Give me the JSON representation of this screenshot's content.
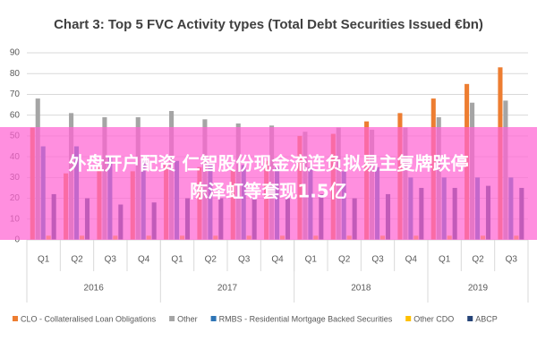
{
  "chart_data": {
    "type": "bar",
    "title": "Chart 3: Top 5 FVC Activity types (Total Debt Securities Issued €bn)",
    "categories": [
      "Q1",
      "Q2",
      "Q3",
      "Q4",
      "Q1",
      "Q2",
      "Q3",
      "Q4",
      "Q1",
      "Q2",
      "Q3",
      "Q4",
      "Q1",
      "Q2",
      "Q3"
    ],
    "groups": [
      {
        "label": "2016",
        "count": 4
      },
      {
        "label": "2017",
        "count": 4
      },
      {
        "label": "2018",
        "count": 4
      },
      {
        "label": "2019",
        "count": 3
      }
    ],
    "series": [
      {
        "name": "CLO - Collateralised Loan Obligations",
        "color": "#ed7d31",
        "values": [
          54,
          32,
          35,
          33,
          36,
          35,
          34,
          38,
          50,
          51,
          57,
          61,
          68,
          75,
          83
        ]
      },
      {
        "name": "Other",
        "color": "#a5a5a5",
        "values": [
          68,
          61,
          59,
          59,
          62,
          58,
          56,
          55,
          52,
          54,
          53,
          54,
          59,
          66,
          67
        ]
      },
      {
        "name": "RMBS - Residential Mortgage Backed Securities",
        "color": "#2e75b6",
        "values": [
          45,
          45,
          40,
          38,
          38,
          36,
          36,
          35,
          35,
          33,
          35,
          30,
          30,
          30,
          30
        ]
      },
      {
        "name": "Other CDO",
        "color": "#ffc000",
        "values": [
          2,
          2,
          2,
          2,
          2,
          2,
          2,
          2,
          2,
          2,
          2,
          2,
          2,
          2,
          2
        ]
      },
      {
        "name": "ABCP",
        "color": "#264478",
        "values": [
          22,
          20,
          17,
          18,
          20,
          20,
          20,
          20,
          22,
          20,
          22,
          25,
          25,
          26,
          25
        ]
      }
    ],
    "ylim": [
      0,
      90
    ],
    "yticks": [
      0,
      10,
      20,
      30,
      40,
      50,
      60,
      70,
      80,
      90
    ],
    "grid": true,
    "legend": "bottom"
  },
  "overlay": {
    "lines": [
      "外盘开户配资 仁智股份现金流连负拟易主复牌跌停",
      "陈泽虹等套现1.5亿"
    ]
  }
}
